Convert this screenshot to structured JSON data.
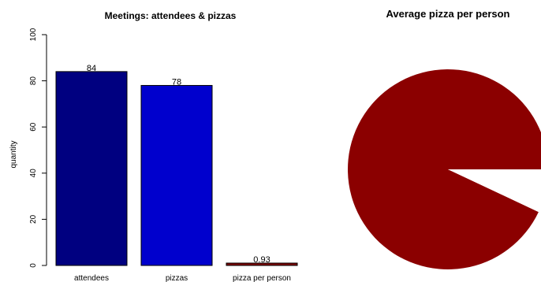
{
  "chart_data": [
    {
      "type": "bar",
      "title": "Meetings: attendees & pizzas",
      "xlabel": "",
      "ylabel": "quantity",
      "ylim": [
        0,
        100
      ],
      "yticks": [
        "0",
        "20",
        "40",
        "60",
        "80",
        "100"
      ],
      "categories": [
        "attendees",
        "pizzas",
        "pizza per person"
      ],
      "values": [
        84,
        78,
        0.93
      ],
      "value_labels": [
        "84",
        "78",
        "0.93"
      ],
      "colors": [
        "#000080",
        "#0000cd",
        "#800000"
      ],
      "grid": false,
      "legend": "none"
    },
    {
      "type": "pie",
      "title": "Average pizza per person",
      "values": [
        0.93,
        0.07
      ],
      "colors": [
        "#8b0000",
        "#ffffff"
      ],
      "legend": "none"
    }
  ]
}
